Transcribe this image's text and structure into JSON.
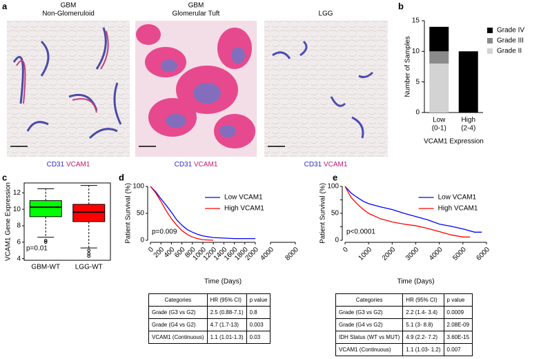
{
  "panel_labels": [
    "a",
    "b",
    "c",
    "d",
    "e"
  ],
  "images": [
    {
      "title": [
        "GBM",
        "Non-Glomeruloid"
      ],
      "stain": [
        "CD31",
        "VCAM1"
      ]
    },
    {
      "title": [
        "GBM",
        "Glomerular  Tuft"
      ],
      "stain": [
        "CD31",
        "VCAM1"
      ]
    },
    {
      "title": [
        "LGG"
      ],
      "stain": [
        "CD31",
        "VCAM1"
      ]
    }
  ],
  "chart_data": [
    {
      "type": "stacked_bar",
      "ylabel": "Number of Samples",
      "xlabel": "VCAM1 Expression",
      "categories": [
        [
          "Low",
          "(0-1)"
        ],
        [
          "High",
          "(2-4)"
        ]
      ],
      "ylim": [
        0,
        15
      ],
      "yticks": [
        0,
        5,
        10,
        15
      ],
      "series": [
        {
          "name": "Grade II",
          "color": "#d3d3d3",
          "values": [
            8,
            0
          ]
        },
        {
          "name": "Grade III",
          "color": "#8a8a8a",
          "values": [
            2,
            0
          ]
        },
        {
          "name": "Grade IV",
          "color": "#000000",
          "values": [
            4,
            10
          ]
        }
      ]
    },
    {
      "type": "box",
      "ylabel": "VCAM1 Gene Expression",
      "annotation": "p=0.01",
      "categories": [
        "GBM-WT",
        "LGG-WT"
      ],
      "colors": [
        "#00ff00",
        "#ff0000"
      ],
      "ylim": [
        3.8,
        13.2
      ],
      "yticks": [
        4,
        6,
        8,
        10,
        12
      ],
      "boxes": [
        {
          "whislo": 6.6,
          "q1": 9.1,
          "med": 10.25,
          "q3": 11.05,
          "whishi": 12.5,
          "fliers": [
            6.2,
            6.0
          ]
        },
        {
          "whislo": 5.3,
          "q1": 8.5,
          "med": 9.65,
          "q3": 10.6,
          "whishi": 12.9,
          "fliers": [
            5.0,
            4.6,
            4.3
          ]
        }
      ]
    },
    {
      "type": "line",
      "ylabel": "Patient Survival (%)",
      "xlabel": "Time (Days)",
      "annotation": "p=0.009",
      "xlim": [
        0,
        2000
      ],
      "xticks": [
        0,
        200,
        400,
        600,
        800,
        1000,
        1200,
        1400,
        1600,
        1800,
        2000
      ],
      "x2lim": [
        4000,
        8000
      ],
      "x2ticks": [
        4000,
        8000
      ],
      "ylim": [
        0,
        100
      ],
      "yticks": [
        0,
        50,
        100
      ],
      "series": [
        {
          "name": "Low VCAM1",
          "color": "#0000ff",
          "x": [
            0,
            100,
            200,
            300,
            400,
            500,
            600,
            700,
            800,
            900,
            1000,
            1200,
            1400,
            1600,
            1800,
            2000
          ],
          "values": [
            100,
            90,
            77,
            65,
            52,
            38,
            28,
            20,
            15,
            11,
            8,
            5,
            4,
            3,
            3,
            3
          ]
        },
        {
          "name": "High VCAM1",
          "color": "#ff0000",
          "x": [
            0,
            100,
            200,
            300,
            400,
            500,
            600,
            700,
            800,
            900,
            1000,
            1200
          ],
          "values": [
            100,
            88,
            72,
            55,
            40,
            28,
            18,
            11,
            6,
            3,
            1,
            0
          ]
        }
      ]
    },
    {
      "type": "line",
      "ylabel": "Patient Survival (%)",
      "xlabel": "Time (Days)",
      "annotation": "p<0.0001",
      "xlim": [
        0,
        6000
      ],
      "xticks": [
        0,
        1000,
        2000,
        3000,
        4000,
        5000,
        6000
      ],
      "ylim": [
        0,
        100
      ],
      "yticks": [
        0,
        25,
        50,
        75,
        100
      ],
      "series": [
        {
          "name": "Low VCAM1",
          "color": "#0000ff",
          "x": [
            0,
            250,
            500,
            750,
            1000,
            1500,
            2000,
            2500,
            3000,
            3500,
            4000,
            4500,
            5000,
            5500,
            5800
          ],
          "values": [
            100,
            88,
            80,
            73,
            68,
            62,
            57,
            50,
            44,
            38,
            30,
            26,
            21,
            15,
            15
          ]
        },
        {
          "name": "High VCAM1",
          "color": "#ff0000",
          "x": [
            0,
            250,
            500,
            750,
            1000,
            1500,
            2000,
            2500,
            3000,
            3500,
            4000,
            4500,
            5000,
            5300
          ],
          "values": [
            100,
            80,
            68,
            58,
            50,
            40,
            34,
            30,
            27,
            22,
            16,
            10,
            6,
            6
          ]
        }
      ]
    }
  ],
  "tables": [
    {
      "header": [
        "Categories",
        "HR (95% CI)",
        "p value"
      ],
      "rows": [
        [
          "Grade (G3 vs G2)",
          "2.5 (0.88-7.1)",
          "0.8"
        ],
        [
          "Grade (G4 vs G2)",
          "4.7 (1.7-13)",
          "0.003"
        ],
        [
          "VCAM1 (Continuous)",
          "1.1 (1.01-1.3)",
          "0.03"
        ]
      ]
    },
    {
      "header": [
        "Categories",
        "HR (95% CI)",
        "p value"
      ],
      "rows": [
        [
          "Grade (G3 vs G2)",
          "2.2 (1.4- 3.4)",
          "0.0009"
        ],
        [
          "Grade (G4 vs G2)",
          "5.1 (3- 8.8)",
          "2.08E-09"
        ],
        [
          "IDH Status (WT vs MUT)",
          "4.9 (2.2- 7.2)",
          "3.60E-15"
        ],
        [
          "VCAM1 (Continuous)",
          "1.1 (1.03- 1.2)",
          "0.007"
        ]
      ]
    }
  ]
}
